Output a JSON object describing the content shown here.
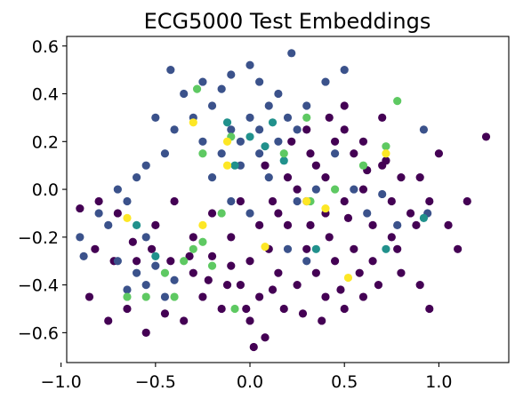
{
  "chart_data": {
    "type": "scatter",
    "title": "ECG5000 Test Embeddings",
    "xlabel": "",
    "ylabel": "",
    "xlim": [
      -0.97,
      1.37
    ],
    "ylim": [
      -0.725,
      0.64
    ],
    "x_ticks": [
      -1.0,
      -0.5,
      0.0,
      0.5,
      1.0
    ],
    "x_tick_labels": [
      "−1.0",
      "−0.5",
      "0.0",
      "0.5",
      "1.0"
    ],
    "y_ticks": [
      -0.6,
      -0.4,
      -0.2,
      0.0,
      0.2,
      0.4,
      0.6
    ],
    "y_tick_labels": [
      "−0.6",
      "−0.4",
      "−0.2",
      "0.0",
      "0.2",
      "0.4",
      "0.6"
    ],
    "grid": false,
    "legend": "none",
    "colormap": "viridis",
    "marker": "circle",
    "series": [
      {
        "color": "#440154",
        "points": [
          [
            0.05,
            -0.15
          ],
          [
            0.12,
            -0.05
          ],
          [
            0.2,
            0.05
          ],
          [
            0.3,
            -0.25
          ],
          [
            0.35,
            0.1
          ],
          [
            0.4,
            -0.1
          ],
          [
            0.45,
            0.2
          ],
          [
            0.5,
            -0.05
          ],
          [
            0.55,
            0.15
          ],
          [
            0.6,
            0.0
          ],
          [
            0.65,
            -0.15
          ],
          [
            0.7,
            0.1
          ],
          [
            0.75,
            -0.05
          ],
          [
            0.8,
            0.05
          ],
          [
            0.25,
            -0.4
          ],
          [
            0.15,
            -0.35
          ],
          [
            0.05,
            -0.45
          ],
          [
            -0.05,
            -0.4
          ],
          [
            -0.15,
            -0.5
          ],
          [
            -0.25,
            -0.45
          ],
          [
            -0.35,
            -0.55
          ],
          [
            0.0,
            -0.55
          ],
          [
            0.1,
            -0.25
          ],
          [
            0.2,
            -0.15
          ],
          [
            0.3,
            -0.05
          ],
          [
            0.4,
            0.05
          ],
          [
            0.5,
            0.25
          ],
          [
            0.6,
            0.2
          ],
          [
            0.45,
            -0.3
          ],
          [
            0.35,
            -0.35
          ],
          [
            0.55,
            -0.25
          ],
          [
            0.65,
            -0.3
          ],
          [
            0.75,
            -0.2
          ],
          [
            0.85,
            -0.1
          ],
          [
            0.9,
            0.05
          ],
          [
            0.95,
            -0.05
          ],
          [
            1.0,
            0.15
          ],
          [
            1.05,
            -0.15
          ],
          [
            1.1,
            -0.25
          ],
          [
            1.15,
            -0.05
          ],
          [
            1.25,
            0.22
          ],
          [
            0.7,
            0.3
          ],
          [
            0.8,
            -0.35
          ],
          [
            0.9,
            -0.4
          ],
          [
            0.95,
            -0.5
          ],
          [
            0.6,
            -0.45
          ],
          [
            0.5,
            -0.5
          ],
          [
            0.4,
            -0.45
          ],
          [
            -0.1,
            -0.2
          ],
          [
            -0.2,
            -0.1
          ],
          [
            -0.3,
            -0.2
          ],
          [
            -0.4,
            -0.05
          ],
          [
            -0.5,
            -0.15
          ],
          [
            -0.6,
            -0.3
          ],
          [
            -0.7,
            -0.1
          ],
          [
            -0.8,
            -0.05
          ],
          [
            -0.9,
            -0.08
          ],
          [
            -0.85,
            -0.45
          ],
          [
            -0.75,
            -0.55
          ],
          [
            -0.65,
            -0.5
          ],
          [
            -0.55,
            -0.6
          ],
          [
            -0.45,
            -0.52
          ],
          [
            -0.3,
            -0.35
          ],
          [
            -0.2,
            -0.28
          ],
          [
            -0.1,
            -0.32
          ],
          [
            0.0,
            -0.3
          ],
          [
            0.08,
            -0.62
          ],
          [
            0.02,
            -0.66
          ],
          [
            0.15,
            -0.1
          ],
          [
            0.25,
            0.0
          ],
          [
            0.32,
            0.15
          ],
          [
            0.42,
            0.3
          ],
          [
            0.5,
            0.35
          ],
          [
            0.3,
            0.25
          ],
          [
            0.22,
            0.2
          ],
          [
            0.18,
            -0.5
          ],
          [
            0.28,
            -0.52
          ],
          [
            0.38,
            -0.55
          ],
          [
            0.48,
            -0.42
          ],
          [
            0.58,
            -0.35
          ],
          [
            0.68,
            -0.4
          ],
          [
            0.78,
            -0.25
          ],
          [
            0.88,
            -0.15
          ],
          [
            0.72,
            0.12
          ],
          [
            0.62,
            0.08
          ],
          [
            0.52,
            -0.12
          ],
          [
            0.42,
            -0.2
          ],
          [
            0.32,
            -0.15
          ],
          [
            0.12,
            -0.42
          ],
          [
            -0.02,
            -0.5
          ],
          [
            -0.12,
            -0.4
          ],
          [
            -0.22,
            -0.38
          ],
          [
            -0.32,
            -0.28
          ],
          [
            -0.42,
            -0.3
          ],
          [
            -0.52,
            -0.25
          ],
          [
            -0.62,
            -0.22
          ],
          [
            -0.72,
            -0.3
          ],
          [
            -0.82,
            -0.25
          ],
          [
            -0.05,
            -0.05
          ],
          [
            0.08,
            0.1
          ]
        ]
      },
      {
        "color": "#3b528b",
        "points": [
          [
            -0.3,
            0.3
          ],
          [
            -0.2,
            0.35
          ],
          [
            -0.1,
            0.25
          ],
          [
            0.0,
            0.3
          ],
          [
            0.1,
            0.35
          ],
          [
            0.2,
            0.3
          ],
          [
            -0.25,
            0.2
          ],
          [
            -0.15,
            0.15
          ],
          [
            -0.05,
            0.2
          ],
          [
            0.05,
            0.25
          ],
          [
            0.15,
            0.2
          ],
          [
            0.25,
            0.25
          ],
          [
            -0.35,
            0.4
          ],
          [
            -0.25,
            0.45
          ],
          [
            -0.15,
            0.42
          ],
          [
            0.05,
            0.45
          ],
          [
            0.15,
            0.4
          ],
          [
            0.3,
            0.35
          ],
          [
            -0.4,
            0.25
          ],
          [
            -0.5,
            0.3
          ],
          [
            -0.45,
            0.15
          ],
          [
            -0.55,
            0.1
          ],
          [
            -0.6,
            0.05
          ],
          [
            -0.65,
            -0.05
          ],
          [
            -0.7,
            0.0
          ],
          [
            -0.75,
            -0.15
          ],
          [
            -0.6,
            -0.35
          ],
          [
            -0.55,
            -0.4
          ],
          [
            -0.5,
            -0.32
          ],
          [
            -0.45,
            -0.45
          ],
          [
            -0.65,
            -0.42
          ],
          [
            -0.7,
            -0.3
          ],
          [
            -0.4,
            -0.38
          ],
          [
            -0.55,
            -0.2
          ],
          [
            0.4,
            0.45
          ],
          [
            0.5,
            0.5
          ],
          [
            0.22,
            0.57
          ],
          [
            0.0,
            0.52
          ],
          [
            -0.1,
            0.48
          ],
          [
            -0.42,
            0.5
          ],
          [
            0.35,
            0.0
          ],
          [
            0.25,
            -0.05
          ],
          [
            0.1,
            0.05
          ],
          [
            -0.05,
            0.1
          ],
          [
            0.05,
            0.15
          ],
          [
            0.45,
            0.15
          ],
          [
            0.55,
            0.0
          ],
          [
            0.62,
            -0.1
          ],
          [
            0.7,
            -0.02
          ],
          [
            0.92,
            0.25
          ],
          [
            0.94,
            -0.1
          ],
          [
            -0.9,
            -0.2
          ],
          [
            -0.88,
            -0.28
          ],
          [
            -0.8,
            -0.1
          ],
          [
            0.78,
            -0.15
          ],
          [
            0.3,
            -0.3
          ],
          [
            0.2,
            -0.25
          ],
          [
            0.0,
            -0.1
          ],
          [
            -0.1,
            -0.05
          ],
          [
            -0.2,
            0.05
          ]
        ]
      },
      {
        "color": "#21918c",
        "points": [
          [
            0.0,
            0.22
          ],
          [
            0.08,
            0.18
          ],
          [
            -0.12,
            0.28
          ],
          [
            0.12,
            0.28
          ],
          [
            -0.08,
            0.1
          ],
          [
            0.18,
            0.12
          ],
          [
            -0.6,
            -0.15
          ],
          [
            -0.5,
            -0.28
          ],
          [
            0.72,
            -0.25
          ],
          [
            0.92,
            -0.12
          ],
          [
            0.35,
            -0.25
          ]
        ]
      },
      {
        "color": "#5ec962",
        "points": [
          [
            -0.28,
            0.42
          ],
          [
            -0.1,
            0.22
          ],
          [
            0.3,
            0.3
          ],
          [
            -0.25,
            0.15
          ],
          [
            -0.15,
            -0.1
          ],
          [
            -0.35,
            -0.3
          ],
          [
            -0.45,
            -0.35
          ],
          [
            -0.3,
            -0.25
          ],
          [
            -0.2,
            -0.32
          ],
          [
            -0.55,
            -0.45
          ],
          [
            -0.65,
            -0.45
          ],
          [
            -0.4,
            -0.45
          ],
          [
            0.78,
            0.37
          ],
          [
            0.72,
            0.18
          ],
          [
            0.6,
            0.1
          ],
          [
            0.45,
            0.0
          ],
          [
            0.32,
            -0.05
          ],
          [
            0.18,
            0.15
          ],
          [
            -0.08,
            -0.5
          ],
          [
            -0.25,
            -0.22
          ]
        ]
      },
      {
        "color": "#fde725",
        "points": [
          [
            -0.12,
            0.2
          ],
          [
            -0.12,
            0.1
          ],
          [
            -0.3,
            0.28
          ],
          [
            0.72,
            0.15
          ],
          [
            0.3,
            -0.05
          ],
          [
            0.4,
            -0.08
          ],
          [
            -0.25,
            -0.15
          ],
          [
            0.08,
            -0.24
          ],
          [
            0.52,
            -0.37
          ],
          [
            -0.65,
            -0.12
          ]
        ]
      }
    ]
  }
}
